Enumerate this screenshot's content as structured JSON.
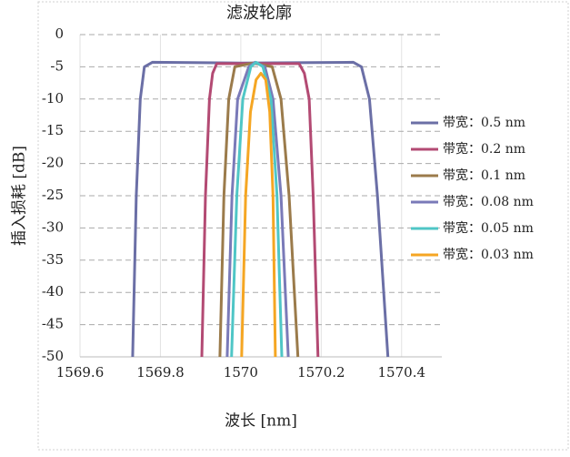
{
  "chart_data": {
    "type": "line",
    "title": "滤波轮廓",
    "x_label": "波长 [nm]",
    "y_label": "插入损耗 [dB]",
    "xlim": [
      1569.6,
      1570.5
    ],
    "ylim": [
      -50,
      0
    ],
    "xticks": [
      1569.6,
      1569.8,
      1570,
      1570.2,
      1570.4
    ],
    "yticks": [
      0,
      -5,
      -10,
      -15,
      -20,
      -25,
      -30,
      -35,
      -40,
      -45,
      -50
    ],
    "grid": true,
    "legend": "right",
    "series": [
      {
        "name": "带宽：0.5 nm",
        "color": "#6b6fa6",
        "x": [
          1569.731,
          1569.74,
          1569.75,
          1569.76,
          1569.78,
          1570.0,
          1570.28,
          1570.3,
          1570.32,
          1570.34,
          1570.366
        ],
        "values": [
          -50,
          -25,
          -10,
          -5,
          -4.3,
          -4.4,
          -4.3,
          -5,
          -10,
          -25,
          -50
        ]
      },
      {
        "name": "带宽：0.2 nm",
        "color": "#b34a73",
        "x": [
          1569.903,
          1569.912,
          1569.922,
          1569.93,
          1569.94,
          1570.04,
          1570.145,
          1570.158,
          1570.17,
          1570.18,
          1570.192
        ],
        "values": [
          -50,
          -25,
          -10,
          -6,
          -4.5,
          -4.5,
          -4.5,
          -6,
          -10,
          -25,
          -50
        ]
      },
      {
        "name": "带宽：0.1 nm",
        "color": "#9b7b4b",
        "x": [
          1569.948,
          1569.958,
          1569.97,
          1569.985,
          1570.03,
          1570.078,
          1570.1,
          1570.12,
          1570.142
        ],
        "values": [
          -50,
          -25,
          -10,
          -5,
          -4.4,
          -5,
          -10,
          -25,
          -50
        ]
      },
      {
        "name": "带宽：0.08 nm",
        "color": "#7a7ab8",
        "x": [
          1569.966,
          1569.978,
          1569.992,
          1570.02,
          1570.035,
          1570.06,
          1570.08,
          1570.1,
          1570.118
        ],
        "values": [
          -50,
          -25,
          -10,
          -5,
          -4.3,
          -5,
          -10,
          -25,
          -50
        ]
      },
      {
        "name": "带宽：0.05 nm",
        "color": "#4fc6c6",
        "x": [
          1569.977,
          1569.99,
          1570.005,
          1570.025,
          1570.038,
          1570.055,
          1570.075,
          1570.09,
          1570.102
        ],
        "values": [
          -50,
          -25,
          -10,
          -5,
          -4.3,
          -5,
          -10,
          -25,
          -50
        ]
      },
      {
        "name": "带宽：0.03 nm",
        "color": "#f5a623",
        "x": [
          1570.002,
          1570.012,
          1570.024,
          1570.038,
          1570.05,
          1570.062,
          1570.072,
          1570.08,
          1570.086
        ],
        "values": [
          -50,
          -25,
          -12,
          -7,
          -6,
          -7,
          -12,
          -25,
          -50
        ]
      }
    ]
  }
}
